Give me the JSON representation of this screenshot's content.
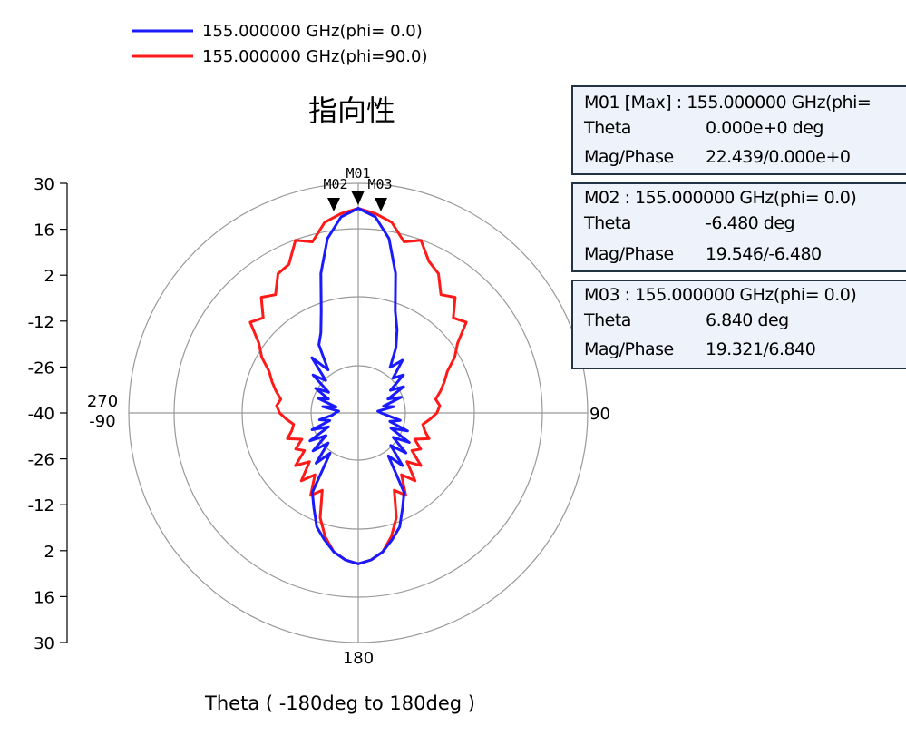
{
  "chart_data": {
    "type": "polar",
    "title": "指向性",
    "xlabel": "Theta ( -180deg to 180deg )",
    "radial_ticks_top": [
      "30",
      "16",
      "2",
      "-12",
      "-26",
      "-40"
    ],
    "radial_ticks_bottom": [
      "-26",
      "-12",
      "2",
      "16",
      "30"
    ],
    "radial_range": [
      -40,
      30
    ],
    "angle_labels": {
      "left_top": "270",
      "left_bottom": "-90",
      "right": "90",
      "bottom": "180"
    },
    "grid": true,
    "legend_position": "top-left",
    "series": [
      {
        "name": "155.000000 GHz(phi= 0.0)",
        "color": "#1a1aff",
        "theta": [
          0,
          5,
          10,
          15,
          20,
          25,
          30,
          35,
          40,
          45,
          50,
          55,
          60,
          65,
          70,
          75,
          80,
          85,
          90,
          95,
          100,
          105,
          110,
          115,
          120,
          125,
          130,
          135,
          140,
          145,
          150,
          155,
          160,
          165,
          170,
          175,
          180
        ],
        "r_left": [
          22.4,
          20,
          14,
          4,
          -7,
          -13,
          -16,
          -24,
          -18,
          -26,
          -22,
          -29,
          -25,
          -30,
          -27,
          -33,
          -29,
          -34,
          -33,
          -32,
          -28,
          -31,
          -25,
          -30,
          -23,
          -28,
          -22,
          -27,
          -20,
          -25,
          -12,
          -8,
          -3,
          0,
          3,
          5,
          6
        ],
        "r_right": [
          22.4,
          20,
          14,
          4,
          -7,
          -12,
          -17,
          -23,
          -19,
          -25,
          -22,
          -28,
          -24,
          -30,
          -26,
          -32,
          -29,
          -34,
          -33,
          -31,
          -27,
          -30,
          -24,
          -29,
          -22,
          -27,
          -21,
          -26,
          -19,
          -24,
          -12,
          -8,
          -3,
          0,
          3,
          5,
          6
        ]
      },
      {
        "name": "155.000000 GHz(phi=90.0)",
        "color": "#ff1a1a",
        "theta": [
          0,
          5,
          10,
          15,
          20,
          25,
          30,
          35,
          40,
          45,
          50,
          55,
          60,
          65,
          70,
          75,
          80,
          85,
          90,
          95,
          100,
          105,
          110,
          115,
          120,
          125,
          130,
          135,
          140,
          145,
          150,
          155,
          160,
          165,
          170,
          175,
          180
        ],
        "r_left": [
          22.4,
          21,
          19,
          14,
          16,
          10,
          9,
          4,
          6,
          1,
          3,
          -3,
          -6,
          -10,
          -12,
          -14,
          -16,
          -15,
          -16,
          -18,
          -20,
          -19,
          -17,
          -21,
          -18,
          -20,
          -15,
          -19,
          -13,
          -17,
          -11,
          -14,
          -6,
          -1,
          3,
          5,
          6
        ],
        "r_right": [
          22.4,
          21,
          19,
          14,
          16,
          11,
          9,
          4,
          6,
          1,
          3,
          -3,
          -6,
          -10,
          -12,
          -14,
          -16,
          -15,
          -16,
          -18,
          -20,
          -19,
          -17,
          -21,
          -18,
          -20,
          -15,
          -19,
          -13,
          -17,
          -11,
          -14,
          -6,
          -1,
          3,
          5,
          6
        ]
      }
    ],
    "markers_on_plot": [
      "M01",
      "M02",
      "M03"
    ]
  },
  "legend": {
    "items": [
      {
        "label": "155.000000 GHz(phi= 0.0)",
        "color": "#1a1aff"
      },
      {
        "label": "155.000000 GHz(phi=90.0)",
        "color": "#ff1a1a"
      }
    ]
  },
  "marker_table": [
    {
      "header": "M01 [Max] : 155.000000 GHz(phi=",
      "theta_key": "Theta",
      "theta_val": "0.000e+0  deg",
      "mag_key": "Mag/Phase",
      "mag_val": "22.439/0.000e+0"
    },
    {
      "header": "M02 : 155.000000 GHz(phi= 0.0)",
      "theta_key": "Theta",
      "theta_val": "-6.480  deg",
      "mag_key": "Mag/Phase",
      "mag_val": "19.546/-6.480"
    },
    {
      "header": "M03 : 155.000000 GHz(phi= 0.0)",
      "theta_key": "Theta",
      "theta_val": "6.840  deg",
      "mag_key": "Mag/Phase",
      "mag_val": "19.321/6.840"
    }
  ]
}
